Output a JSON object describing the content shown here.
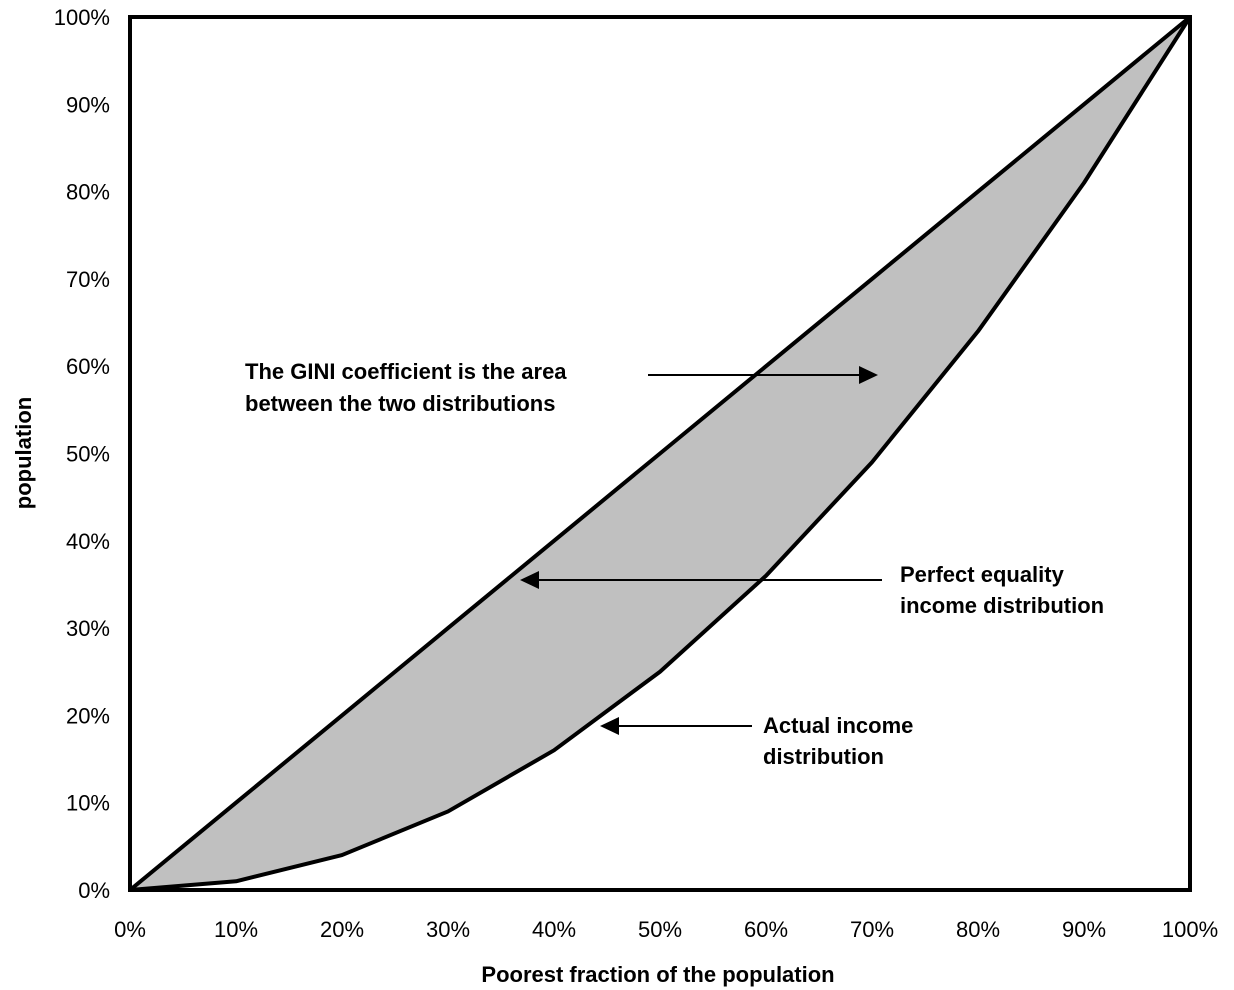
{
  "chart_data": {
    "type": "area",
    "xlabel": "Poorest fraction of the population",
    "ylabel": "population",
    "xlim": [
      0,
      100
    ],
    "ylim": [
      0,
      100
    ],
    "x_ticks": [
      "0%",
      "10%",
      "20%",
      "30%",
      "40%",
      "50%",
      "60%",
      "70%",
      "80%",
      "90%",
      "100%"
    ],
    "y_ticks": [
      "0%",
      "10%",
      "20%",
      "30%",
      "40%",
      "50%",
      "60%",
      "70%",
      "80%",
      "90%",
      "100%"
    ],
    "grid": false,
    "series": [
      {
        "name": "Perfect equality income distribution",
        "x": [
          0,
          10,
          20,
          30,
          40,
          50,
          60,
          70,
          80,
          90,
          100
        ],
        "y": [
          0,
          10,
          20,
          30,
          40,
          50,
          60,
          70,
          80,
          90,
          100
        ]
      },
      {
        "name": "Actual income distribution",
        "x": [
          0,
          10,
          20,
          30,
          40,
          50,
          60,
          70,
          80,
          90,
          100
        ],
        "y": [
          0,
          1,
          4,
          9,
          16,
          25,
          36,
          49,
          64,
          81,
          100
        ]
      }
    ],
    "fill_between_color": "#c0c0c0",
    "line_color": "#000000",
    "annotations": [
      {
        "lines": [
          "The GINI coefficient is the area",
          "between the two distributions"
        ],
        "target": [
          70,
          59
        ]
      },
      {
        "lines": [
          "Perfect equality",
          "income distribution"
        ],
        "target": [
          36.5,
          36
        ]
      },
      {
        "lines": [
          "Actual income",
          "distribution"
        ],
        "target": [
          44,
          19
        ]
      }
    ]
  }
}
